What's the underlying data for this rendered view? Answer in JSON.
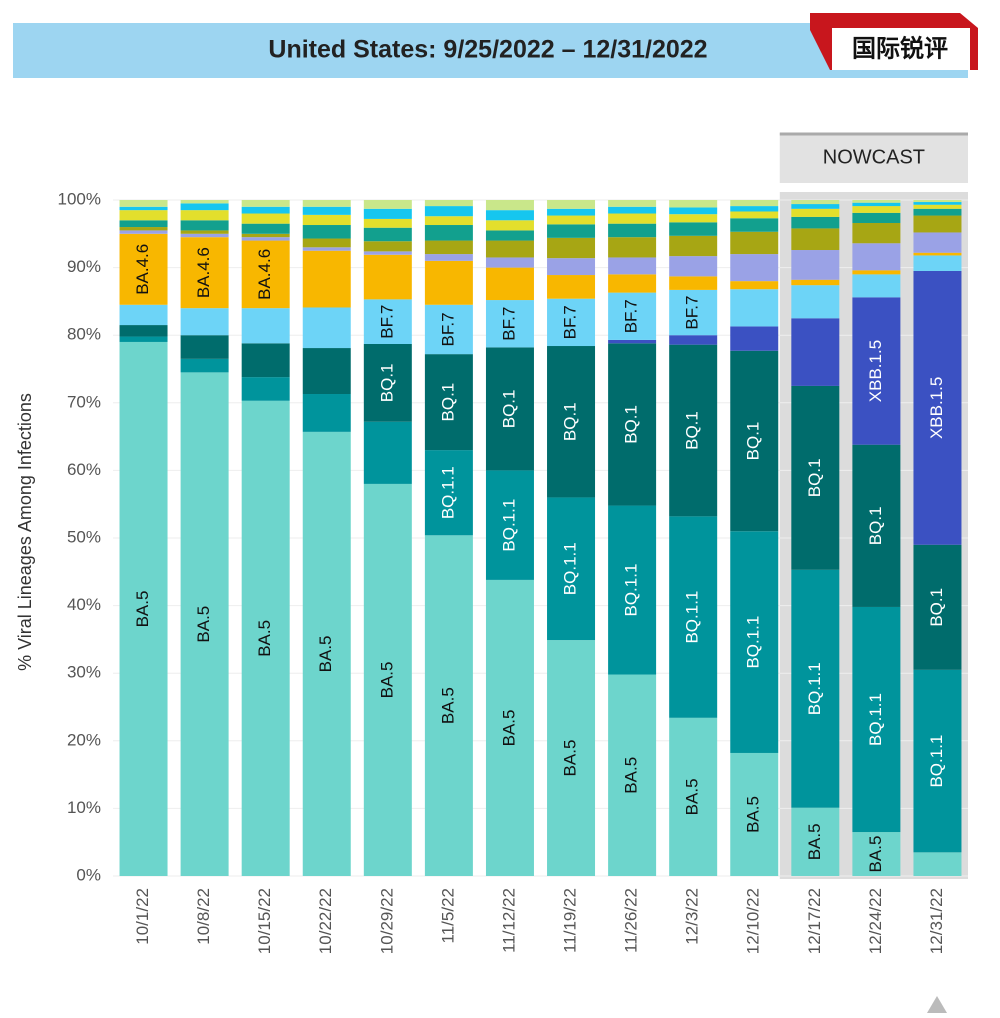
{
  "logo": "国际锐评",
  "chart_data": {
    "type": "stacked_bar",
    "title": "United States: 9/25/2022 – 12/31/2022",
    "y_label": "% Viral Lineages Among Infections",
    "annotation": "NOWCAST",
    "shaded_from": "12/17/22",
    "categories": [
      "10/1/22",
      "10/8/22",
      "10/15/22",
      "10/22/22",
      "10/29/22",
      "11/5/22",
      "11/12/22",
      "11/19/22",
      "11/26/22",
      "12/3/22",
      "12/10/22",
      "12/17/22",
      "12/24/22",
      "12/31/22"
    ],
    "ylim": [
      0,
      100
    ],
    "grid": true,
    "yticks": [
      {
        "value": 0,
        "label": "0%"
      },
      {
        "value": 10,
        "label": "10%"
      },
      {
        "value": 20,
        "label": "20%"
      },
      {
        "value": 30,
        "label": "30%"
      },
      {
        "value": 40,
        "label": "40%"
      },
      {
        "value": 50,
        "label": "50%"
      },
      {
        "value": 60,
        "label": "60%"
      },
      {
        "value": 70,
        "label": "70%"
      },
      {
        "value": 80,
        "label": "80%"
      },
      {
        "value": 90,
        "label": "90%"
      },
      {
        "value": 100,
        "label": "100%"
      }
    ],
    "series": [
      {
        "name": "BA.5",
        "color": "#6dd5cc",
        "label_color": "#111",
        "label_bars": [
          0,
          1,
          2,
          3,
          4,
          5,
          6,
          7,
          8,
          9,
          10,
          11,
          12
        ],
        "values": [
          79,
          74.5,
          70.3,
          65.7,
          58,
          50.4,
          43.8,
          34.9,
          29.8,
          23.4,
          18.2,
          10.1,
          6.5,
          3.5
        ]
      },
      {
        "name": "BQ.1.1",
        "color": "#00949c",
        "label_color": "#fff",
        "label_bars": [
          5,
          6,
          7,
          8,
          9,
          10,
          11,
          12,
          13
        ],
        "values": [
          0.8,
          2,
          3.5,
          5.6,
          9.2,
          12.6,
          16.2,
          21.1,
          25,
          29.8,
          32.8,
          35.2,
          33.3,
          27
        ]
      },
      {
        "name": "BQ.1",
        "color": "#006c6c",
        "label_color": "#fff",
        "label_bars": [
          4,
          5,
          6,
          7,
          8,
          9,
          10,
          11,
          12,
          13
        ],
        "values": [
          1.7,
          3.5,
          5,
          6.8,
          11.5,
          14.2,
          18.2,
          22.4,
          24,
          25.4,
          26.7,
          27.2,
          24,
          18.5
        ]
      },
      {
        "name": "XBB.1.5",
        "color": "#3b51c2",
        "label_color": "#fff",
        "label_bars": [
          12,
          13
        ],
        "values": [
          0,
          0,
          0,
          0,
          0,
          0,
          0,
          0,
          0.5,
          1.4,
          3.6,
          10,
          21.8,
          40.5
        ]
      },
      {
        "name": "BF.7",
        "color": "#6dd4f7",
        "label_color": "#111",
        "label_bars": [
          4,
          5,
          6,
          7,
          8,
          9
        ],
        "values": [
          3,
          4,
          5.2,
          6,
          6.6,
          7.3,
          7,
          7,
          7,
          6.7,
          5.5,
          4.9,
          3.4,
          2.3
        ]
      },
      {
        "name": "BA.4.6",
        "color": "#f8b700",
        "label_color": "#111",
        "label_bars": [
          0,
          1,
          2
        ],
        "values": [
          10.5,
          10.5,
          10,
          8.4,
          6.6,
          6.5,
          4.8,
          3.5,
          2.7,
          2,
          1.2,
          0.8,
          0.6,
          0.4
        ]
      },
      {
        "color": "#9aa2e6",
        "values": [
          0.5,
          0.5,
          0.5,
          0.5,
          0.5,
          1,
          1.5,
          2.5,
          2.5,
          3,
          4,
          4.4,
          4,
          3
        ]
      },
      {
        "color": "#a7a614",
        "values": [
          0.5,
          0.5,
          0.5,
          1.3,
          1.5,
          2,
          2.5,
          3,
          3,
          3,
          3.3,
          3.2,
          3,
          2.5
        ]
      },
      {
        "color": "#12a08e",
        "values": [
          1,
          1.5,
          1.5,
          2,
          2,
          2.3,
          1.5,
          2,
          2,
          2,
          2,
          1.7,
          1.5,
          1
        ]
      },
      {
        "color": "#e3df2c",
        "values": [
          1.5,
          1.5,
          1.5,
          1.5,
          1.3,
          1.3,
          1.5,
          1.3,
          1.5,
          1.2,
          1,
          1.2,
          1,
          0.6
        ]
      },
      {
        "color": "#16c6ef",
        "values": [
          0.5,
          1,
          1,
          1.2,
          1.5,
          1.5,
          1.5,
          1,
          1,
          1,
          0.8,
          0.7,
          0.5,
          0.4
        ]
      },
      {
        "color": "#c9e78a",
        "values": [
          1,
          0.5,
          1,
          1,
          1.3,
          0.9,
          1.5,
          1.3,
          1,
          1.1,
          0.9,
          0.6,
          0.4,
          0.3
        ]
      }
    ]
  }
}
